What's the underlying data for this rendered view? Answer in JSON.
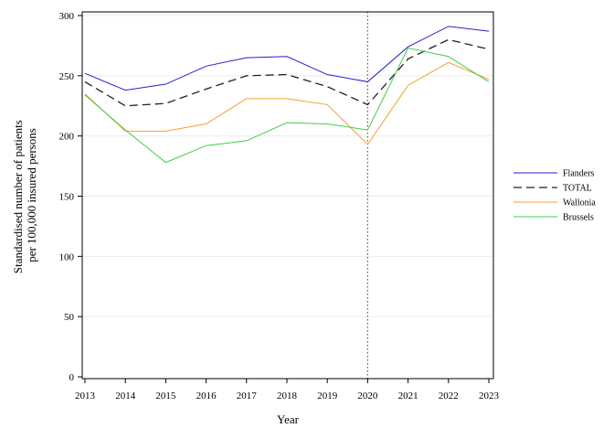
{
  "chart_data": {
    "type": "line",
    "title": "",
    "xlabel": "Year",
    "ylabel_lines": [
      "Standardised number of patients",
      "per 100,000 insured persons"
    ],
    "x": [
      2013,
      2014,
      2015,
      2016,
      2017,
      2018,
      2019,
      2020,
      2021,
      2022,
      2023
    ],
    "xlim": [
      2013,
      2023
    ],
    "ylim": [
      0,
      300
    ],
    "yticks": [
      0,
      50,
      100,
      150,
      200,
      250,
      300
    ],
    "grid": "horizontal",
    "legend_position": "right",
    "reference_line": {
      "x": 2020,
      "style": "dotted",
      "color": "#b03060"
    },
    "series": [
      {
        "name": "Flanders",
        "color": "#2222cc",
        "dash": "solid",
        "values": [
          252,
          238,
          243,
          258,
          265,
          266,
          251,
          245,
          274,
          291,
          287
        ]
      },
      {
        "name": "TOTAL",
        "color": "#222222",
        "dash": "dashed",
        "values": [
          245,
          225,
          227,
          239,
          250,
          251,
          241,
          226,
          264,
          280,
          272
        ]
      },
      {
        "name": "Wallonia",
        "color": "#f5a030",
        "dash": "solid",
        "values": [
          235,
          204,
          204,
          210,
          231,
          231,
          226,
          193,
          242,
          261,
          247
        ]
      },
      {
        "name": "Brussels",
        "color": "#44cc44",
        "dash": "solid",
        "values": [
          234,
          205,
          178,
          192,
          196,
          211,
          210,
          205,
          273,
          266,
          245
        ]
      }
    ]
  }
}
